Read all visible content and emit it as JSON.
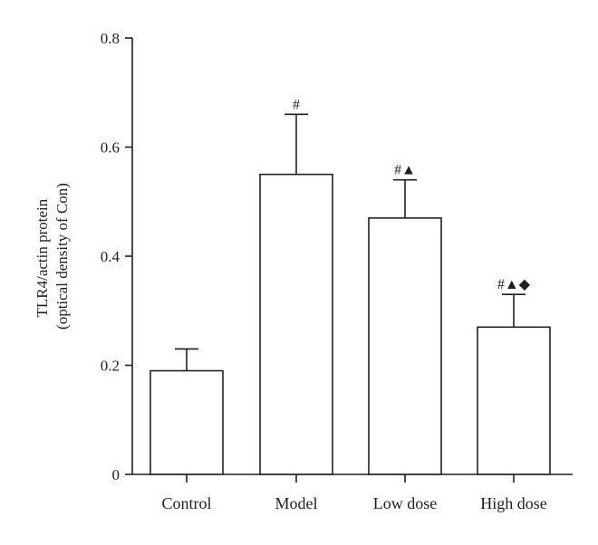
{
  "chart_data": {
    "type": "bar",
    "title": "",
    "xlabel": "",
    "ylabel_line1": "TLR4/actin protein",
    "ylabel_line2": "(optical density of Con)",
    "categories": [
      "Control",
      "Model",
      "Low dose",
      "High dose"
    ],
    "values": [
      0.19,
      0.55,
      0.47,
      0.27
    ],
    "error_upper": [
      0.04,
      0.11,
      0.07,
      0.06
    ],
    "annotations": [
      "",
      "#",
      "#▲",
      "#▲◆"
    ],
    "ylim": [
      0,
      0.8
    ],
    "yticks": [
      0,
      0.2,
      0.4,
      0.6,
      0.8
    ],
    "ytick_labels": [
      "0",
      "0.2",
      "0.4",
      "0.6",
      "0.8"
    ],
    "grid": false,
    "legend": "none",
    "colors": {
      "bar_fill": "#ffffff",
      "stroke": "#231f20"
    }
  }
}
